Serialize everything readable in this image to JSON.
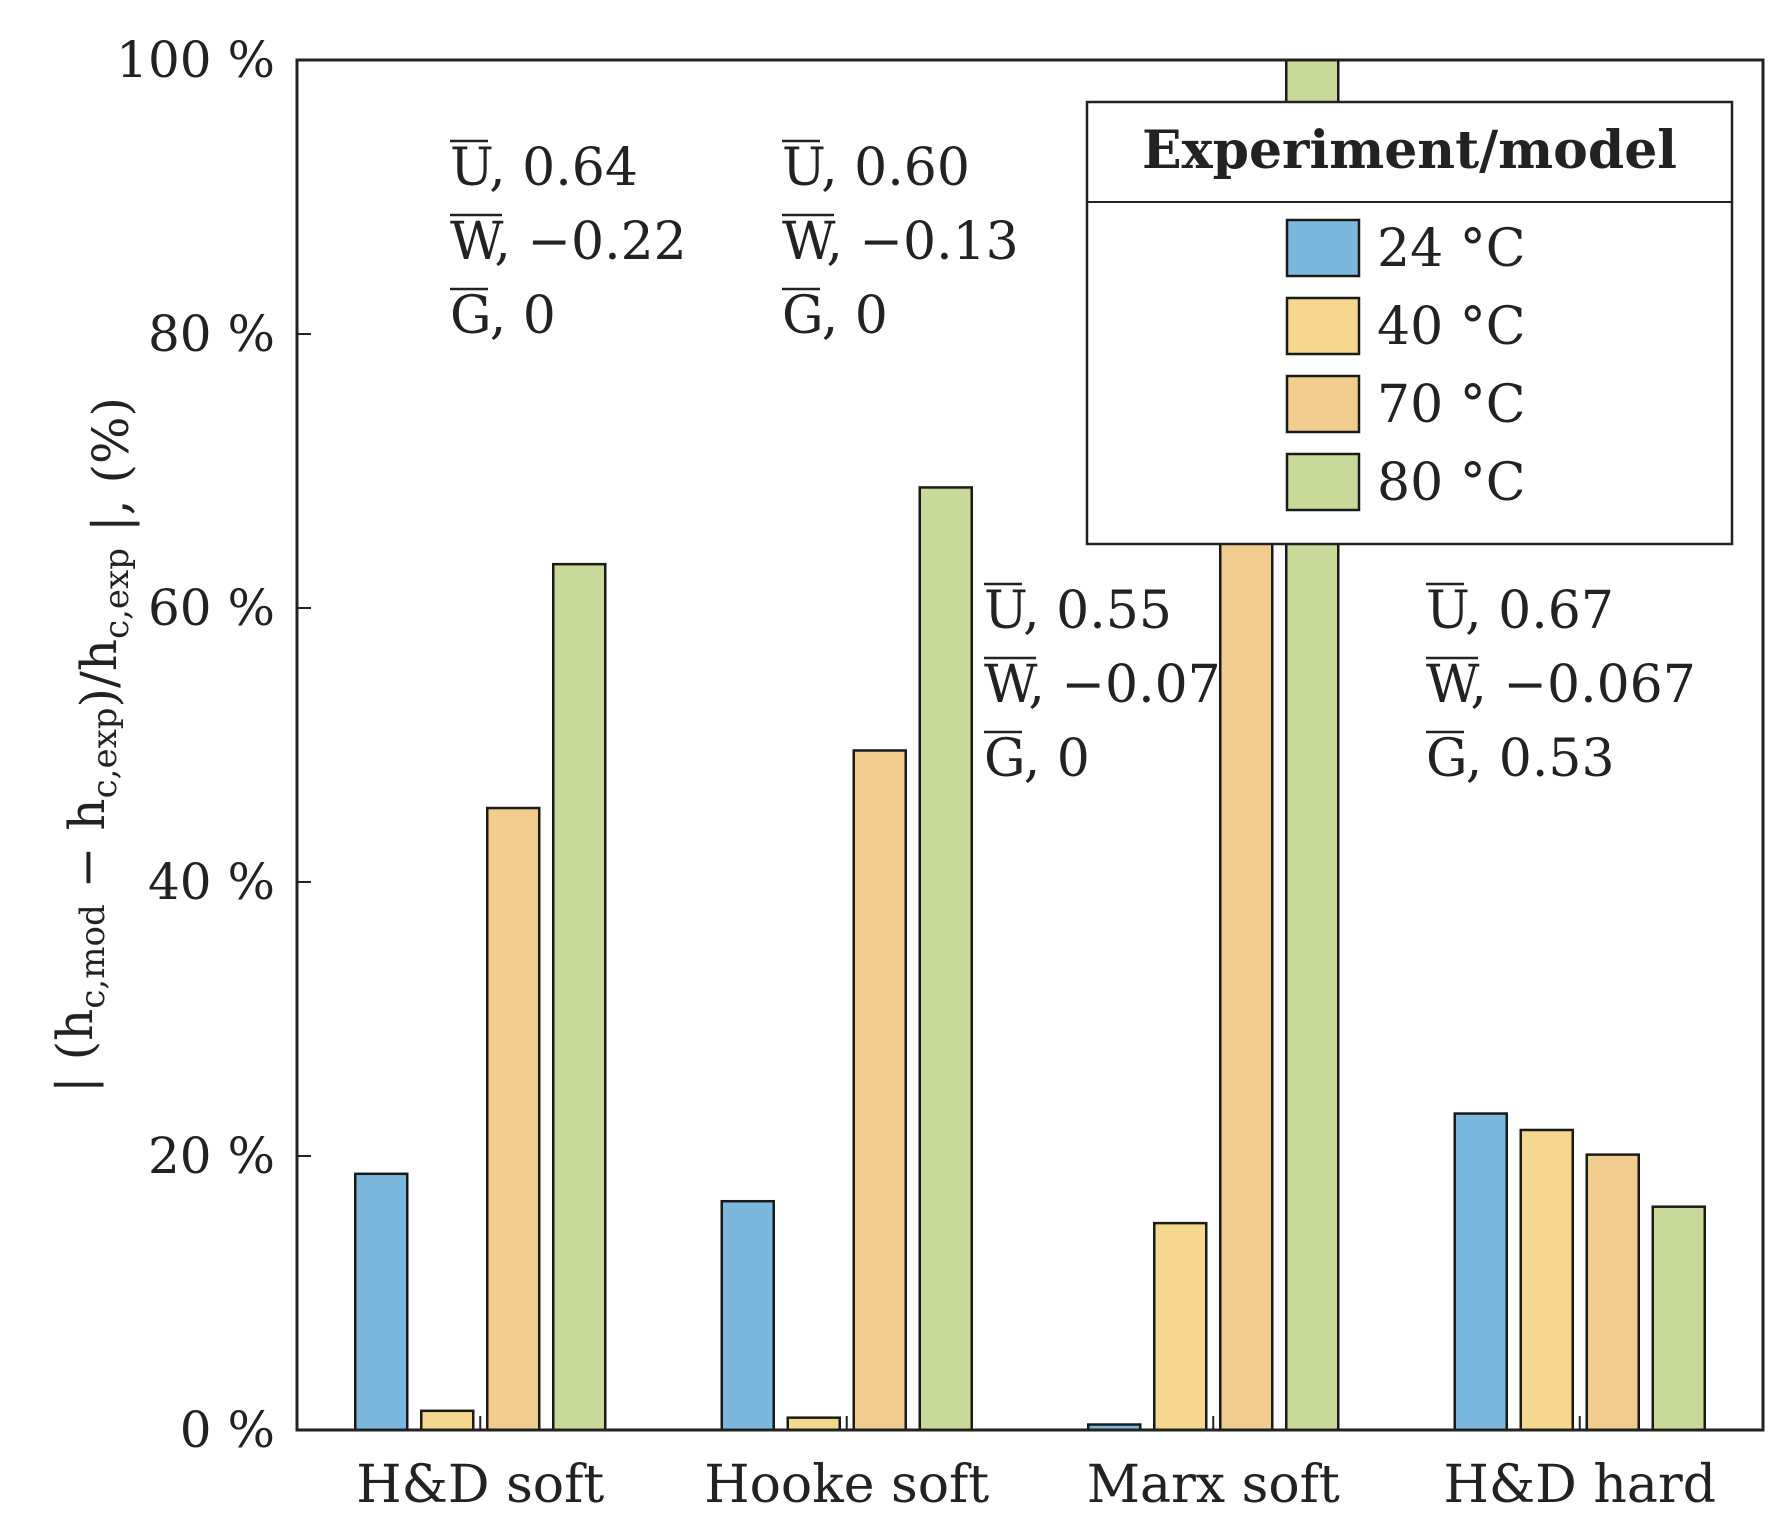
{
  "chart_data": {
    "type": "bar",
    "categories": [
      "H&D soft",
      "Hooke soft",
      "Marx soft",
      "H&D hard"
    ],
    "series": [
      {
        "name": "24 °C",
        "color": "#7cb8de",
        "values": [
          18.7,
          16.7,
          0.4,
          23.1
        ]
      },
      {
        "name": "40 °C",
        "color": "#f5d88e",
        "values": [
          1.4,
          0.9,
          15.1,
          21.9
        ]
      },
      {
        "name": "70 °C",
        "color": "#f0cc8f",
        "values": [
          45.4,
          49.6,
          68.5,
          20.1
        ]
      },
      {
        "name": "80 °C",
        "color": "#c9d99a",
        "values": [
          63.2,
          68.8,
          100,
          16.3
        ]
      }
    ],
    "ylim": [
      0,
      100
    ],
    "yticks": [
      "0 %",
      "20 %",
      "40 %",
      "60 %",
      "80 %",
      "100 %"
    ],
    "ylabel": {
      "open": "| (h",
      "sub1": "c,mod",
      "mid": " − h",
      "sub2": "c,exp",
      "mid2": ")/h",
      "sub3": "c,exp",
      "close": " |, (%)"
    },
    "legend": {
      "title": "Experiment/model",
      "position": "top-right"
    },
    "annotations": [
      {
        "category": "H&D soft",
        "lines": [
          {
            "sym": "U",
            "val": ", 0.64"
          },
          {
            "sym": "W",
            "val": ", −0.22"
          },
          {
            "sym": "G",
            "val": ", 0"
          }
        ]
      },
      {
        "category": "Hooke soft",
        "lines": [
          {
            "sym": "U",
            "val": ", 0.60"
          },
          {
            "sym": "W",
            "val": ", −0.13"
          },
          {
            "sym": "G",
            "val": ", 0"
          }
        ]
      },
      {
        "category": "Marx soft",
        "lines": [
          {
            "sym": "U",
            "val": ", 0.55"
          },
          {
            "sym": "W",
            "val": ", −0.07"
          },
          {
            "sym": "G",
            "val": ", 0"
          }
        ]
      },
      {
        "category": "H&D hard",
        "lines": [
          {
            "sym": "U",
            "val": ", 0.67"
          },
          {
            "sym": "W",
            "val": ", −0.067"
          },
          {
            "sym": "G",
            "val": ", 0.53"
          }
        ]
      }
    ]
  }
}
